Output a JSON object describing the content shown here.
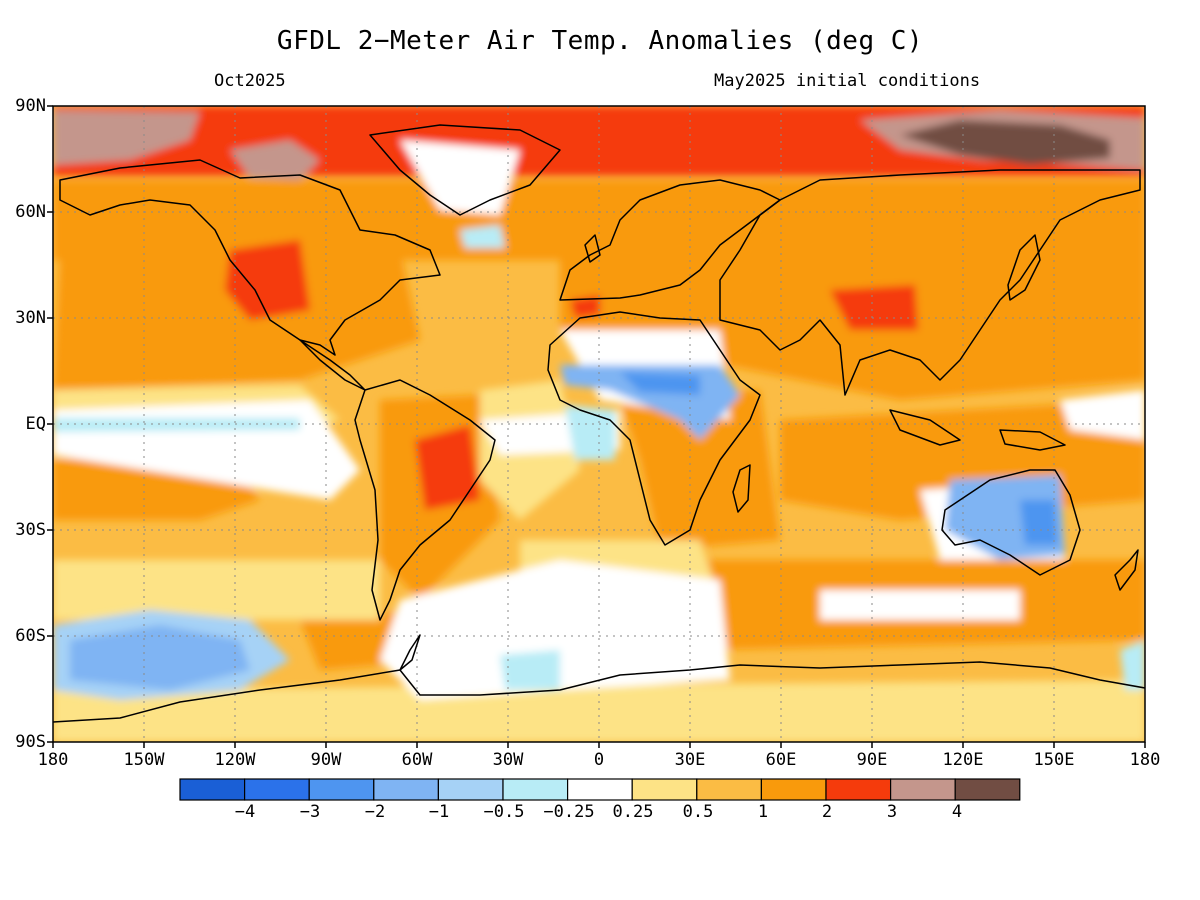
{
  "header": {
    "title": "GFDL 2−Meter Air Temp. Anomalies (deg C)",
    "period": "Oct2025",
    "initial_conditions": "May2025 initial conditions"
  },
  "axes": {
    "lat_labels": [
      "90N",
      "60N",
      "30N",
      "EQ",
      "30S",
      "60S",
      "90S"
    ],
    "lon_labels": [
      "180",
      "150W",
      "120W",
      "90W",
      "60W",
      "30W",
      "0",
      "30E",
      "60E",
      "90E",
      "120E",
      "150E",
      "180"
    ]
  },
  "colorbar": {
    "labels": [
      "−4",
      "−3",
      "−2",
      "−1",
      "−0.5",
      "−0.25",
      "0.25",
      "0.5",
      "1",
      "2",
      "3",
      "4"
    ],
    "colors": [
      "#1a5fd6",
      "#2b72ea",
      "#4e95f0",
      "#7fb4f3",
      "#a6d2f6",
      "#b8ecf6",
      "#ffffff",
      "#fde386",
      "#fbbc44",
      "#f99a0c",
      "#f53b0c",
      "#c4968c",
      "#714d43"
    ]
  },
  "colors": {
    "ocean_base": "#fbbc44",
    "land_outline": "#000000"
  }
}
